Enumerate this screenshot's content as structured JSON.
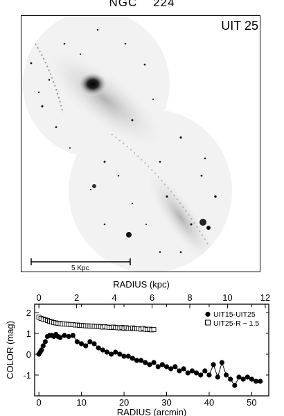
{
  "figure": {
    "title": "NGC    224",
    "filter_label": "UIT 25",
    "scale_bar_label": "5 Kpc"
  },
  "chart_data": {
    "type": "scatter",
    "xlabel": "RADIUS (arcmin)",
    "xlabel_top": "RADIUS (kpc)",
    "ylabel": "COLOR (mag)",
    "xlim": [
      -1,
      54
    ],
    "ylim": [
      -2.0,
      2.4
    ],
    "x_ticks": [
      0,
      10,
      20,
      30,
      40,
      50
    ],
    "x_ticks_top_kpc": [
      0,
      2,
      4,
      6,
      8,
      10,
      12
    ],
    "kpc_per_arcmin": 0.2257,
    "y_ticks": [
      -1,
      0,
      1,
      2
    ],
    "legend_position": "top-right",
    "series": [
      {
        "name": "UIT15-UIT25",
        "marker": "filled-circle",
        "x": [
          0.0,
          0.3,
          0.6,
          1.0,
          1.5,
          2.0,
          2.5,
          3.0,
          3.5,
          4.0,
          4.5,
          5.0,
          6.0,
          7.0,
          8.0,
          9.0,
          10.0,
          11.0,
          12.0,
          13.0,
          14.0,
          15.0,
          16.0,
          17.0,
          18.0,
          19.0,
          20.0,
          21.0,
          22.0,
          23.0,
          24.0,
          25.0,
          26.0,
          27.0,
          28.0,
          29.0,
          30.0,
          31.0,
          32.0,
          33.0,
          34.0,
          35.0,
          36.0,
          37.0,
          38.0,
          39.0,
          40.0,
          41.0,
          42.0,
          43.0,
          44.0,
          45.0,
          46.0,
          47.0,
          48.0,
          49.0,
          50.0,
          51.0,
          52.0
        ],
        "values": [
          0.0,
          0.1,
          0.2,
          0.4,
          0.6,
          0.85,
          0.9,
          0.9,
          0.85,
          0.95,
          0.85,
          0.8,
          0.9,
          0.85,
          0.9,
          0.6,
          0.5,
          0.4,
          0.6,
          0.5,
          0.3,
          0.2,
          0.1,
          0.0,
          0.1,
          0.0,
          -0.1,
          -0.1,
          -0.2,
          -0.3,
          -0.3,
          -0.4,
          -0.5,
          -0.4,
          -0.6,
          -0.5,
          -0.6,
          -0.7,
          -0.6,
          -0.8,
          -0.7,
          -0.9,
          -0.8,
          -0.9,
          -1.0,
          -0.8,
          -1.0,
          -0.5,
          -1.1,
          -0.4,
          -1.0,
          -1.2,
          -1.5,
          -1.1,
          -1.2,
          -1.1,
          -1.2,
          -1.3,
          -1.3
        ]
      },
      {
        "name": "UIT25-R − 1.5",
        "marker": "open-square",
        "x": [
          0.0,
          0.5,
          1.0,
          1.5,
          2.0,
          2.5,
          3.0,
          3.5,
          4.0,
          4.5,
          5.0,
          5.5,
          6.0,
          6.5,
          7.0,
          7.5,
          8.0,
          8.5,
          9.0,
          9.5,
          10.0,
          10.5,
          11.0,
          11.5,
          12.0,
          12.5,
          13.0,
          13.5,
          14.0,
          14.5,
          15.0,
          15.5,
          16.0,
          16.5,
          17.0,
          17.5,
          18.0,
          18.5,
          19.0,
          19.5,
          20.0,
          20.5,
          21.0,
          21.5,
          22.0,
          22.5,
          23.0,
          23.5,
          24.0,
          24.5,
          25.0,
          25.5,
          26.0,
          26.5,
          27.0
        ],
        "values": [
          1.78,
          1.72,
          1.68,
          1.65,
          1.62,
          1.58,
          1.55,
          1.52,
          1.5,
          1.48,
          1.47,
          1.45,
          1.45,
          1.44,
          1.43,
          1.42,
          1.42,
          1.4,
          1.4,
          1.38,
          1.38,
          1.37,
          1.36,
          1.36,
          1.35,
          1.35,
          1.34,
          1.33,
          1.33,
          1.32,
          1.3,
          1.32,
          1.3,
          1.29,
          1.28,
          1.3,
          1.28,
          1.27,
          1.26,
          1.28,
          1.25,
          1.27,
          1.25,
          1.24,
          1.26,
          1.23,
          1.22,
          1.22,
          1.2,
          1.24,
          1.2,
          1.18,
          1.2,
          1.17,
          1.18
        ]
      }
    ]
  }
}
